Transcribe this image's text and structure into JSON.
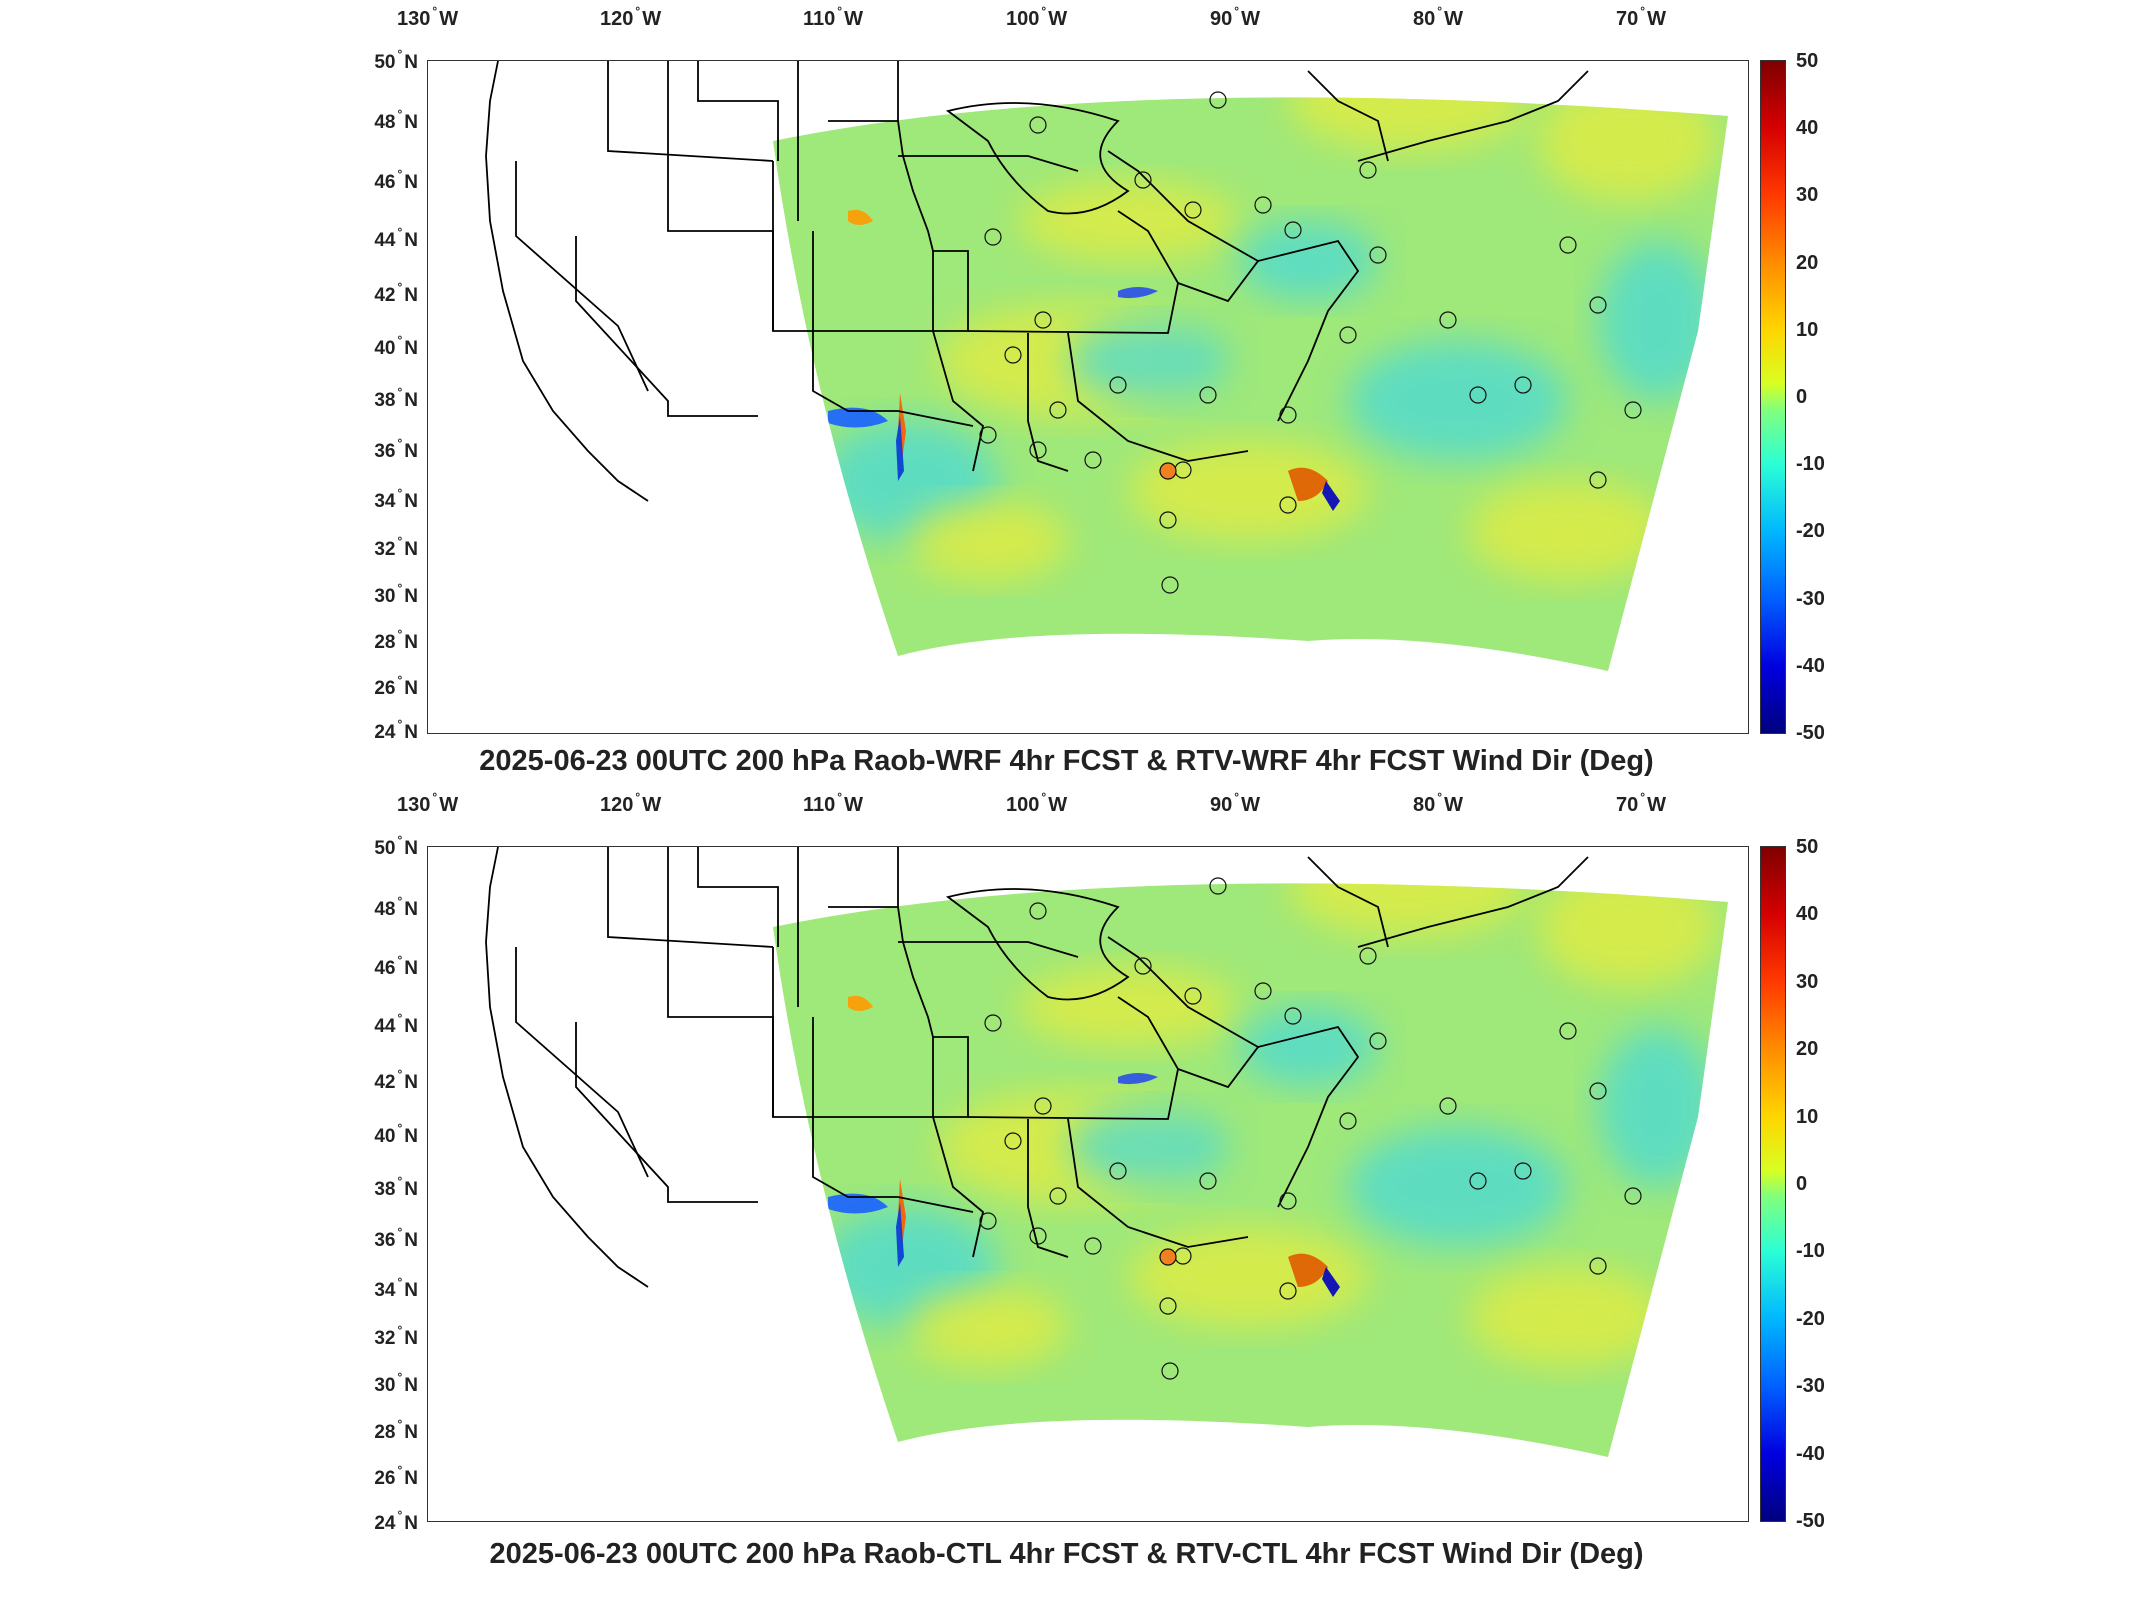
{
  "colors": {
    "field_base": "#9fe87a",
    "field_yellow": "#e6ec3c",
    "field_cyan": "#48d9d8",
    "boundary": "#000000",
    "frame": "#333333"
  },
  "axes": {
    "lon_labels": [
      {
        "value": "130",
        "hemi": "W"
      },
      {
        "value": "120",
        "hemi": "W"
      },
      {
        "value": "110",
        "hemi": "W"
      },
      {
        "value": "100",
        "hemi": "W"
      },
      {
        "value": "90",
        "hemi": "W"
      },
      {
        "value": "80",
        "hemi": "W"
      },
      {
        "value": "70",
        "hemi": "W"
      }
    ],
    "lat_labels": [
      {
        "value": "50",
        "hemi": "N"
      },
      {
        "value": "48",
        "hemi": "N"
      },
      {
        "value": "46",
        "hemi": "N"
      },
      {
        "value": "44",
        "hemi": "N"
      },
      {
        "value": "42",
        "hemi": "N"
      },
      {
        "value": "40",
        "hemi": "N"
      },
      {
        "value": "38",
        "hemi": "N"
      },
      {
        "value": "36",
        "hemi": "N"
      },
      {
        "value": "34",
        "hemi": "N"
      },
      {
        "value": "32",
        "hemi": "N"
      },
      {
        "value": "30",
        "hemi": "N"
      },
      {
        "value": "28",
        "hemi": "N"
      },
      {
        "value": "26",
        "hemi": "N"
      },
      {
        "value": "24",
        "hemi": "N"
      }
    ]
  },
  "colorbar": {
    "ticks": [
      "50",
      "40",
      "30",
      "20",
      "10",
      "0",
      "-10",
      "-20",
      "-30",
      "-40",
      "-50"
    ],
    "min": -50,
    "max": 50,
    "colormap": "jet"
  },
  "panels": [
    {
      "title": "2025-06-23 00UTC 200 hPa Raob-WRF 4hr FCST & RTV-WRF 4hr FCST Wind Dir (Deg)"
    },
    {
      "title": "2025-06-23 00UTC 200 hPa Raob-CTL 4hr FCST & RTV-CTL 4hr FCST Wind Dir (Deg)"
    }
  ]
}
